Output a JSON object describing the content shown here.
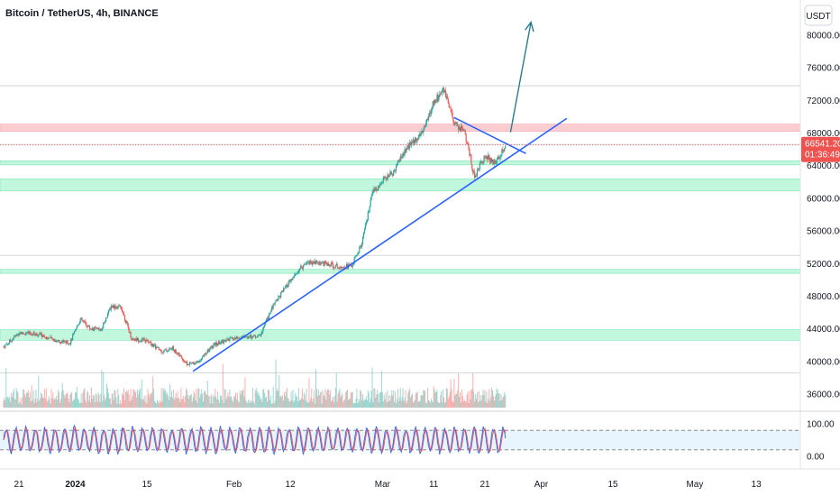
{
  "header": {
    "title": "Bitcoin / TetherUS, 4h, BINANCE"
  },
  "currency_button": {
    "label": "USDT"
  },
  "price_tag": {
    "value": "66541.20",
    "countdown": "01:36:49"
  },
  "chart_data": {
    "type": "candlestick",
    "price_axis": {
      "ticks": [
        "80000.00",
        "76000.00",
        "72000.00",
        "68000.00",
        "64000.00",
        "60000.00",
        "56000.00",
        "52000.00",
        "48000.00",
        "44000.00",
        "40000.00",
        "36000.00"
      ],
      "tick_values": [
        80000,
        76000,
        72000,
        68000,
        64000,
        60000,
        56000,
        52000,
        48000,
        44000,
        40000,
        36000
      ]
    },
    "time_axis": {
      "labels": [
        "21",
        "2024",
        "15",
        "Feb",
        "12",
        "Mar",
        "11",
        "21",
        "Apr",
        "15",
        "May",
        "13"
      ],
      "dates": [
        "2023-12-21",
        "2024-01-01",
        "2024-01-15",
        "2024-02-01",
        "2024-02-12",
        "2024-03-01",
        "2024-03-11",
        "2024-03-21",
        "2024-04-01",
        "2024-04-15",
        "2024-05-01",
        "2024-05-13"
      ]
    },
    "price_series": [
      [
        "2023-12-18",
        41800
      ],
      [
        "2023-12-21",
        43500
      ],
      [
        "2023-12-25",
        43300
      ],
      [
        "2023-12-28",
        42600
      ],
      [
        "2023-12-31",
        42300
      ],
      [
        "2024-01-02",
        45200
      ],
      [
        "2024-01-04",
        44000
      ],
      [
        "2024-01-06",
        43900
      ],
      [
        "2024-01-08",
        46800
      ],
      [
        "2024-01-10",
        46600
      ],
      [
        "2024-01-12",
        42800
      ],
      [
        "2024-01-15",
        42500
      ],
      [
        "2024-01-18",
        41200
      ],
      [
        "2024-01-20",
        41600
      ],
      [
        "2024-01-23",
        39600
      ],
      [
        "2024-01-25",
        40000
      ],
      [
        "2024-01-28",
        42000
      ],
      [
        "2024-01-31",
        42700
      ],
      [
        "2024-02-03",
        43000
      ],
      [
        "2024-02-06",
        43100
      ],
      [
        "2024-02-09",
        47300
      ],
      [
        "2024-02-12",
        49800
      ],
      [
        "2024-02-15",
        52200
      ],
      [
        "2024-02-18",
        52100
      ],
      [
        "2024-02-21",
        51700
      ],
      [
        "2024-02-24",
        51700
      ],
      [
        "2024-02-26",
        54500
      ],
      [
        "2024-02-28",
        60500
      ],
      [
        "2024-03-01",
        62200
      ],
      [
        "2024-03-03",
        63100
      ],
      [
        "2024-03-05",
        65500
      ],
      [
        "2024-03-07",
        67000
      ],
      [
        "2024-03-09",
        68300
      ],
      [
        "2024-03-11",
        71800
      ],
      [
        "2024-03-13",
        73200
      ],
      [
        "2024-03-15",
        69200
      ],
      [
        "2024-03-17",
        68200
      ],
      [
        "2024-03-19",
        62600
      ],
      [
        "2024-03-21",
        65300
      ],
      [
        "2024-03-23",
        64200
      ],
      [
        "2024-03-25",
        66541.2
      ]
    ],
    "zones": [
      {
        "color": "red",
        "from": 68200,
        "to": 69100
      },
      {
        "color": "green",
        "from": 64100,
        "to": 64600
      },
      {
        "color": "green",
        "from": 60900,
        "to": 62400
      },
      {
        "color": "green",
        "from": 50800,
        "to": 51300
      },
      {
        "color": "green",
        "from": 42600,
        "to": 43900
      }
    ],
    "levels": [
      73800,
      66600,
      53000,
      38600
    ],
    "trendlines": [
      {
        "name": "ascending support",
        "from": [
          "2024-01-24",
          38800
        ],
        "to": [
          "2024-04-06",
          69800
        ]
      },
      {
        "name": "descending resistance",
        "from": [
          "2024-03-15",
          69900
        ],
        "to": [
          "2024-03-29",
          65500
        ]
      }
    ],
    "projection_arrow": {
      "from": [
        "2024-03-26",
        68100
      ],
      "to": [
        "2024-03-30",
        81600
      ]
    },
    "oscillator": {
      "ticks": [
        "100.00",
        "0.00"
      ],
      "tick_values": [
        100,
        0
      ],
      "band": [
        20,
        80
      ]
    },
    "colors": {
      "up": "#26a69a",
      "down": "#ef5350",
      "trendline": "#2962ff",
      "arrow": "#2a7c8a",
      "oscillator_k": "#2962ff",
      "oscillator_d": "#ef5350"
    }
  }
}
